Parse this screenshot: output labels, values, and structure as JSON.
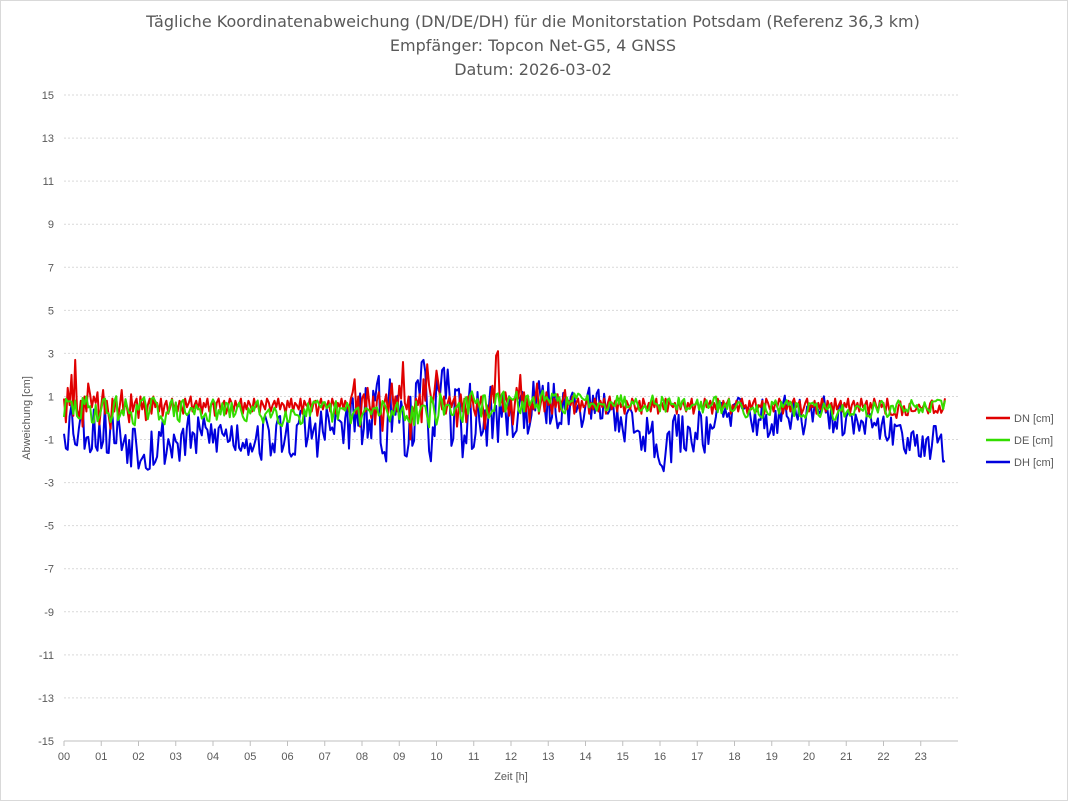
{
  "chart_data": {
    "type": "line",
    "title": "Tägliche Koordinatenabweichung (DN/DE/DH) für die Monitorstation Potsdam (Referenz 36,3 km)",
    "subtitle": "Empfänger: Topcon Net-G5, 4 GNSS",
    "date_line": "Datum: 2026-03-02",
    "xlabel": "Zeit [h]",
    "ylabel": "Abweichung [cm]",
    "xlim": [
      0,
      24
    ],
    "ylim": [
      -15,
      15
    ],
    "xticks": [
      "00",
      "01",
      "02",
      "03",
      "04",
      "05",
      "06",
      "07",
      "08",
      "09",
      "10",
      "11",
      "12",
      "13",
      "14",
      "15",
      "16",
      "17",
      "18",
      "19",
      "20",
      "21",
      "22",
      "23"
    ],
    "yticks": [
      "15",
      "13",
      "11",
      "9",
      "7",
      "5",
      "3",
      "1",
      "-1",
      "-3",
      "-5",
      "-7",
      "-9",
      "-11",
      "-13",
      "-15"
    ],
    "grid": true,
    "legend_position": "right",
    "x_step_hours": 0.05,
    "series": [
      {
        "name": "DN [cm]",
        "color": "#e00000",
        "values": [
          0.9,
          -0.2,
          1.4,
          0.6,
          2.0,
          0.1,
          2.7,
          0.4,
          0.0,
          0.8,
          -0.4,
          1.0,
          0.3,
          1.6,
          1.1,
          0.5,
          1.0,
          0.7,
          1.2,
          -0.3,
          0.6,
          1.3,
          0.2,
          0.8,
          0.1,
          -0.5,
          0.9,
          0.3,
          1.0,
          0.0,
          0.6,
          1.3,
          0.2,
          0.8,
          0.4,
          -0.2,
          1.1,
          0.3,
          0.7,
          0.9,
          0.0,
          1.0,
          0.4,
          0.8,
          -0.1,
          0.6,
          0.9,
          0.2,
          1.0,
          0.5,
          0.7,
          0.3,
          0.9,
          0.1,
          0.6,
          0.8,
          0.2,
          0.5,
          0.9,
          0.4,
          0.7,
          0.3,
          0.8,
          0.6,
          0.2,
          0.9,
          0.5,
          0.7,
          1.0,
          0.3,
          0.6,
          0.8,
          0.4,
          0.9,
          0.2,
          0.7,
          0.5,
          0.9,
          0.3,
          0.6,
          0.8,
          0.1,
          0.7,
          0.9,
          0.4,
          0.6,
          0.8,
          0.2,
          0.5,
          0.9,
          0.7,
          0.3,
          0.8,
          0.5,
          0.6,
          0.9,
          0.2,
          0.7,
          0.4,
          0.8,
          0.6,
          0.3,
          0.9,
          0.5,
          0.7,
          0.2,
          0.8,
          0.6,
          0.4,
          0.9,
          0.7,
          0.3,
          0.6,
          0.8,
          0.5,
          0.9,
          0.4,
          0.7,
          0.6,
          0.2,
          0.8,
          0.5,
          0.9,
          0.3,
          0.7,
          0.6,
          0.4,
          0.9,
          0.2,
          0.8,
          0.6,
          0.5,
          0.9,
          0.3,
          0.7,
          0.8,
          0.1,
          0.6,
          0.9,
          0.4,
          0.7,
          0.5,
          0.8,
          0.3,
          0.9,
          0.6,
          0.2,
          0.7,
          0.5,
          0.9,
          0.4,
          0.8,
          0.6,
          0.3,
          0.9,
          1.2,
          1.8,
          0.2,
          1.0,
          -0.4,
          0.9,
          1.1,
          0.3,
          1.4,
          0.6,
          0.0,
          1.0,
          -0.3,
          0.8,
          1.2,
          0.5,
          -0.6,
          0.7,
          1.1,
          0.2,
          0.9,
          1.6,
          0.4,
          1.0,
          0.3,
          1.5,
          0.9,
          2.6,
          0.7,
          0.4,
          1.0,
          -1.0,
          0.5,
          0.3,
          0.9,
          0.6,
          1.1,
          -0.2,
          1.8,
          0.8,
          2.5,
          1.5,
          1.0,
          0.7,
          1.3,
          2.2,
          1.6,
          0.9,
          0.4,
          1.0,
          0.2,
          0.7,
          1.0,
          0.5,
          0.8,
          1.0,
          -0.4,
          0.6,
          1.1,
          0.3,
          0.9,
          -0.2,
          1.0,
          0.5,
          1.2,
          0.4,
          0.1,
          0.8,
          0.5,
          1.0,
          0.4,
          -0.5,
          0.6,
          0.2,
          0.8,
          1.5,
          0.7,
          2.9,
          3.1,
          0.6,
          1.0,
          0.3,
          1.2,
          0.7,
          0.1,
          0.9,
          -0.3,
          0.6,
          1.4,
          0.9,
          2.0,
          0.5,
          1.2,
          0.3,
          1.0,
          -0.2,
          0.8,
          0.4,
          0.9,
          1.6,
          0.2,
          0.7,
          1.1,
          0.3,
          1.2,
          0.6,
          0.8,
          0.2,
          0.9,
          0.5,
          1.1,
          0.3,
          0.7,
          0.9,
          1.3,
          0.4,
          0.8,
          0.6,
          1.0,
          0.2,
          0.7,
          0.9,
          0.3,
          0.8,
          0.5,
          0.6,
          1.0,
          0.2,
          0.7,
          0.4,
          0.9,
          0.6,
          0.3,
          0.8,
          0.5,
          0.9,
          0.2,
          0.7,
          1.0,
          0.4,
          0.6,
          0.8,
          0.3,
          0.9,
          0.5,
          0.7,
          0.2,
          0.8,
          0.6,
          0.4,
          0.9,
          0.7,
          0.3,
          0.5,
          0.8,
          0.2,
          0.9,
          0.6,
          0.4,
          0.7,
          0.3,
          0.8,
          0.5,
          0.9,
          0.2,
          0.6,
          0.7,
          0.4,
          0.9,
          0.3,
          0.8,
          0.6,
          0.5,
          0.7,
          0.2,
          0.9,
          0.4,
          0.8,
          0.6,
          0.3,
          0.7,
          0.5,
          0.9,
          0.2,
          0.6,
          0.8,
          0.4,
          0.7,
          0.3,
          0.9,
          0.5,
          0.6,
          0.8,
          0.2,
          0.7,
          0.4,
          0.9,
          0.6,
          0.3,
          0.8,
          0.5,
          0.7,
          0.9,
          0.2,
          0.6,
          0.4,
          0.8,
          0.3,
          0.7,
          0.9,
          0.5,
          0.6,
          0.2,
          0.8,
          0.4,
          0.7,
          0.9,
          0.3,
          0.6,
          0.5,
          0.8,
          0.2,
          0.9,
          0.7,
          0.4,
          0.6,
          0.3,
          0.8,
          0.5,
          0.9,
          0.7,
          0.2,
          0.6,
          0.4,
          0.8,
          0.3,
          0.7,
          0.9,
          0.5,
          0.6,
          0.8,
          0.2,
          0.4,
          0.7,
          0.9,
          0.3,
          0.6,
          0.5,
          0.8,
          0.2,
          0.7,
          0.4,
          0.9,
          0.6,
          0.3,
          0.8,
          0.5,
          0.7,
          0.2,
          0.9,
          0.4,
          0.6,
          0.8,
          0.3,
          0.7,
          0.5,
          0.9,
          0.2,
          0.6,
          0.8,
          0.4,
          0.7,
          0.3,
          0.9,
          0.5,
          0.6,
          0.8,
          0.2,
          0.7,
          0.4,
          0.9,
          0.6,
          0.3,
          0.8,
          0.5,
          0.7,
          0.2,
          0.9,
          0.4
        ],
        "generator": "jittered"
      },
      {
        "name": "DE [cm]",
        "color": "#33dd00",
        "generator": "jittered"
      },
      {
        "name": "DH [cm]",
        "color": "#0000dd",
        "generator": "jittered"
      }
    ],
    "envelopes": {
      "DN [cm]": [
        [
          0,
          0.4,
          1.0
        ],
        [
          4,
          0.5,
          0.5
        ],
        [
          8,
          0.6,
          0.8
        ],
        [
          9.5,
          0.8,
          1.3
        ],
        [
          10.5,
          0.6,
          0.9
        ],
        [
          12,
          0.4,
          0.8
        ],
        [
          16,
          0.6,
          0.5
        ],
        [
          20,
          0.5,
          0.4
        ],
        [
          21,
          0.2,
          0.5
        ],
        [
          23.6,
          0.6,
          0.4
        ]
      ],
      "DE [cm]": [
        [
          0,
          0.4,
          0.7
        ],
        [
          4,
          0.3,
          0.5
        ],
        [
          8,
          0.2,
          0.6
        ],
        [
          10,
          0.4,
          0.8
        ],
        [
          12,
          0.7,
          0.5
        ],
        [
          15,
          0.8,
          0.4
        ],
        [
          18,
          0.5,
          0.4
        ],
        [
          21,
          0.3,
          0.4
        ],
        [
          23.6,
          0.6,
          0.3
        ]
      ],
      "DH [cm]": [
        [
          0,
          0.0,
          1.5
        ],
        [
          2.5,
          -1.2,
          1.4
        ],
        [
          4,
          -0.8,
          1.0
        ],
        [
          6,
          -0.9,
          1.1
        ],
        [
          8,
          -0.2,
          1.6
        ],
        [
          9.9,
          0.4,
          2.3
        ],
        [
          11,
          -0.2,
          1.6
        ],
        [
          13,
          0.6,
          1.2
        ],
        [
          14.5,
          0.5,
          0.8
        ],
        [
          16,
          -1.2,
          1.2
        ],
        [
          17,
          -0.5,
          1.2
        ],
        [
          18,
          0.3,
          0.8
        ],
        [
          19,
          -0.2,
          1.0
        ],
        [
          20,
          0.2,
          1.0
        ],
        [
          21,
          -0.2,
          0.8
        ],
        [
          22,
          -0.6,
          0.7
        ],
        [
          23.6,
          -1.2,
          1.0
        ]
      ]
    }
  },
  "legend": {
    "dn": "DN [cm]",
    "de": "DE [cm]",
    "dh": "DH [cm]"
  }
}
